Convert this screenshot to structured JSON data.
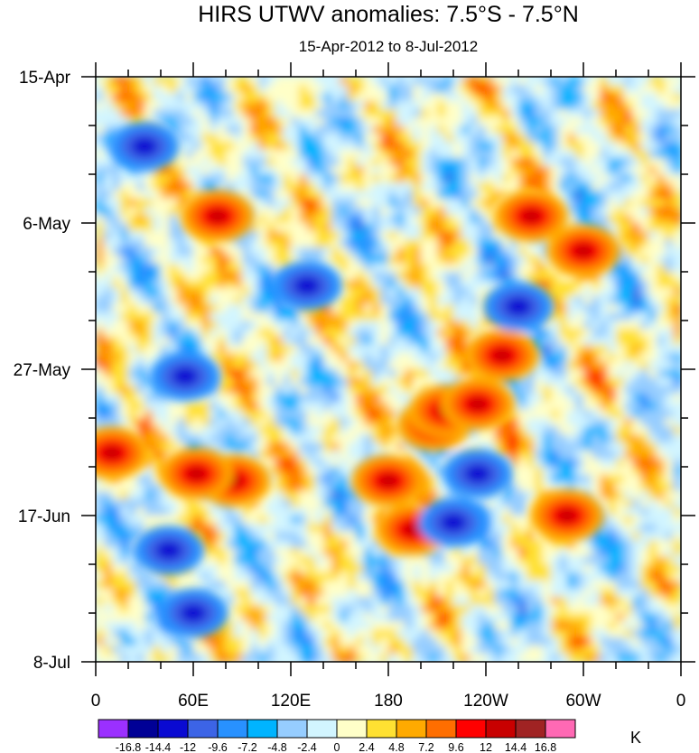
{
  "chart_data": {
    "type": "heatmap",
    "title": "HIRS UTWV anomalies: 7.5°S - 7.5°N",
    "subtitle": "15-Apr-2012 to 8-Jul-2012",
    "xlabel": "",
    "ylabel": "",
    "x_ticks": [
      "0",
      "60E",
      "120E",
      "180",
      "120W",
      "60W",
      "0"
    ],
    "y_ticks": [
      "15-Apr",
      "6-May",
      "27-May",
      "17-Jun",
      "8-Jul"
    ],
    "x_range": [
      0,
      360
    ],
    "y_range": [
      "15-Apr-2012",
      "8-Jul-2012"
    ],
    "y_minor_ticks_per_interval": 2,
    "x_minor_ticks_per_interval": 2,
    "colorbar": {
      "unit": "K",
      "levels": [
        "-16.8",
        "-14.4",
        "-12",
        "-9.6",
        "-7.2",
        "-4.8",
        "-2.4",
        "0",
        "2.4",
        "4.8",
        "7.2",
        "9.6",
        "12",
        "14.4",
        "16.8"
      ],
      "colors": [
        "#9b30ff",
        "#000096",
        "#0a0ad2",
        "#3c64e6",
        "#2891ff",
        "#00b4ff",
        "#96cdff",
        "#d2f5ff",
        "#ffffc8",
        "#ffe132",
        "#ffaa00",
        "#ff6e00",
        "#ff0000",
        "#c80000",
        "#a02323",
        "#ff69b4"
      ]
    },
    "features": [
      {
        "label": "positive",
        "lon": 268,
        "day": 20
      },
      {
        "label": "positive",
        "lon": 250,
        "day": 40
      },
      {
        "label": "positive",
        "lon": 208,
        "day": 50
      },
      {
        "label": "positive",
        "lon": 300,
        "day": 25
      },
      {
        "label": "positive",
        "lon": 85,
        "day": 58
      },
      {
        "label": "positive",
        "lon": 62,
        "day": 57
      },
      {
        "label": "positive",
        "lon": 180,
        "day": 58
      },
      {
        "label": "positive",
        "lon": 215,
        "day": 48
      },
      {
        "label": "positive",
        "lon": 235,
        "day": 47
      },
      {
        "label": "positive",
        "lon": 290,
        "day": 63
      },
      {
        "label": "positive",
        "lon": 75,
        "day": 20
      },
      {
        "label": "positive",
        "lon": 10,
        "day": 54
      },
      {
        "label": "positive",
        "lon": 195,
        "day": 65
      },
      {
        "label": "negative",
        "lon": 235,
        "day": 57
      },
      {
        "label": "negative",
        "lon": 220,
        "day": 64
      },
      {
        "label": "negative",
        "lon": 55,
        "day": 43
      },
      {
        "label": "negative",
        "lon": 45,
        "day": 68
      },
      {
        "label": "negative",
        "lon": 60,
        "day": 77
      },
      {
        "label": "negative",
        "lon": 130,
        "day": 30
      },
      {
        "label": "negative",
        "lon": 260,
        "day": 33
      },
      {
        "label": "negative",
        "lon": 30,
        "day": 10
      }
    ]
  }
}
